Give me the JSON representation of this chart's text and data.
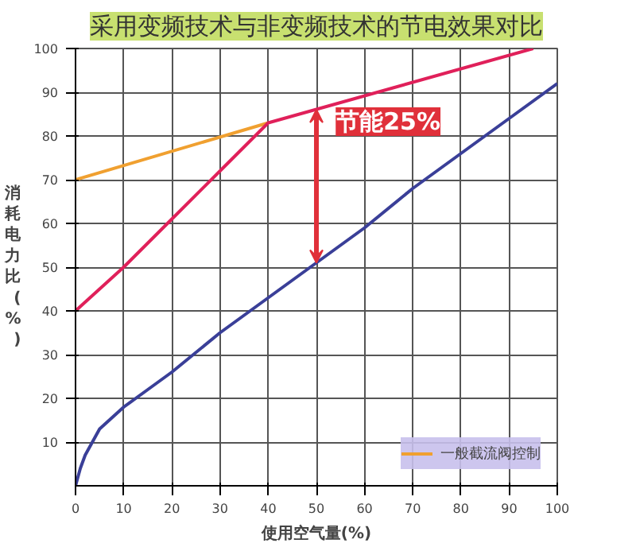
{
  "chart_data": {
    "type": "line",
    "title": "采用变频技术与非变频技术的节电效果对比",
    "xlabel": "使用空气量(%)",
    "ylabel": "消耗电力比(%)",
    "series": [
      {
        "name": "一般截流阀控制",
        "color": "#f0a030",
        "x": [
          0,
          40
        ],
        "values": [
          70,
          83
        ]
      },
      {
        "color": "#e0205a",
        "x": [
          0,
          10,
          20,
          30,
          40,
          95
        ],
        "values": [
          40,
          50,
          61,
          72,
          83,
          100
        ]
      },
      {
        "color": "#3a3f98",
        "x": [
          0,
          1,
          2,
          5,
          10,
          15,
          20,
          30,
          40,
          50,
          60,
          70,
          80,
          90,
          100
        ],
        "values": [
          0,
          4,
          7,
          13,
          18,
          22,
          26,
          35,
          43,
          51,
          59,
          68,
          76,
          84,
          92
        ]
      }
    ],
    "annotations": [
      {
        "text": "节能25%",
        "x": 50,
        "y": 86
      }
    ],
    "xlim": [
      0,
      100
    ],
    "ylim": [
      0,
      100
    ],
    "xticks": [
      0,
      10,
      20,
      30,
      40,
      50,
      60,
      70,
      80,
      90,
      100
    ],
    "yticks": [
      10,
      20,
      30,
      40,
      50,
      60,
      70,
      80,
      90,
      100
    ],
    "grid": true,
    "legend": "bottom right",
    "marker": "none",
    "line_style": "solid"
  }
}
